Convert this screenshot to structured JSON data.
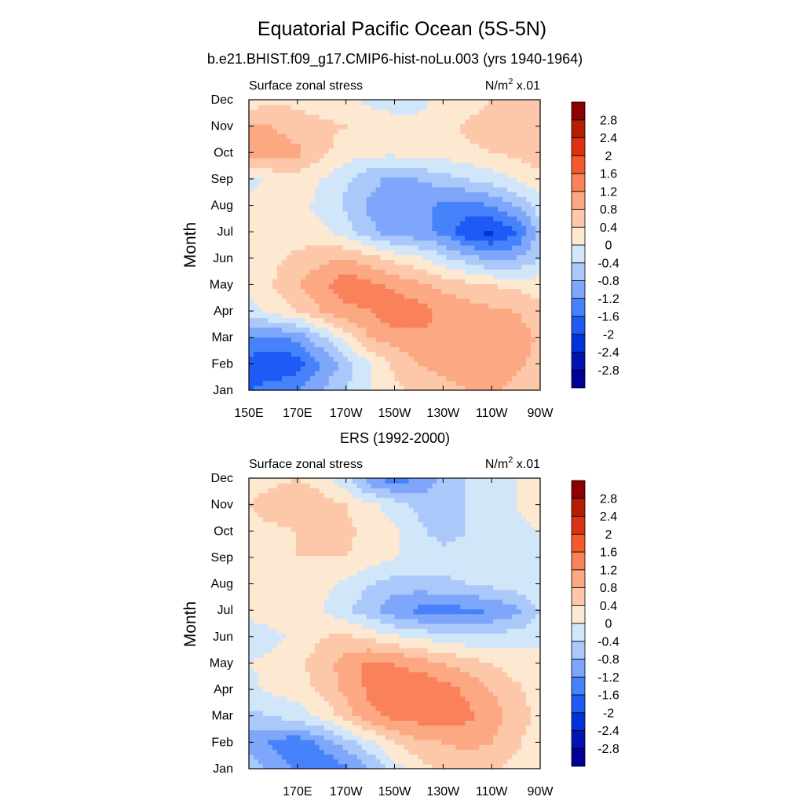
{
  "figure": {
    "title": "Equatorial Pacific Ocean (5S-5N)"
  },
  "chart_data": [
    {
      "type": "heatmap",
      "subtitle": "b.e21.BHIST.f09_g17.CMIP6-hist-noLu.003 (yrs 1940-1964)",
      "left_label": "Surface zonal stress",
      "units_prefix": "N/m",
      "units_sup": "2",
      "units_suffix": " x.01",
      "xlabel": "",
      "ylabel": "Month",
      "x_ticks": [
        "150E",
        "170E",
        "170W",
        "150W",
        "130W",
        "110W",
        "90W"
      ],
      "y_ticks": [
        "Jan",
        "Feb",
        "Mar",
        "Apr",
        "May",
        "Jun",
        "Jul",
        "Aug",
        "Sep",
        "Oct",
        "Nov",
        "Dec"
      ],
      "colorbar_labels": [
        "2.8",
        "2.4",
        "2",
        "1.6",
        "1.2",
        "0.8",
        "0.4",
        "0",
        "-0.4",
        "-0.8",
        "-1.2",
        "-1.6",
        "-2",
        "-2.4",
        "-2.8"
      ],
      "lon_range_deg_east": [
        150,
        270
      ],
      "x_lon": [
        150,
        160,
        170,
        180,
        190,
        200,
        210,
        220,
        230,
        240,
        250,
        260,
        270
      ],
      "y_months": [
        1,
        2,
        3,
        4,
        5,
        6,
        7,
        8,
        9,
        10,
        11,
        12
      ],
      "values": [
        [
          -1.6,
          -1.4,
          -1.2,
          -0.8,
          -0.4,
          0.0,
          0.3,
          0.5,
          0.7,
          0.8,
          0.9,
          0.6,
          0.5
        ],
        [
          -1.8,
          -2.0,
          -1.8,
          -1.2,
          -0.6,
          0.0,
          0.5,
          0.8,
          0.9,
          1.0,
          1.1,
          0.9,
          0.6
        ],
        [
          -1.2,
          -1.3,
          -1.1,
          -0.5,
          0.2,
          0.8,
          1.0,
          1.1,
          1.1,
          1.1,
          1.1,
          1.1,
          0.7
        ],
        [
          -0.2,
          0.1,
          0.4,
          0.8,
          1.1,
          1.2,
          1.5,
          1.4,
          1.1,
          1.0,
          0.9,
          0.8,
          0.5
        ],
        [
          0.2,
          0.4,
          0.8,
          1.1,
          1.5,
          1.3,
          1.1,
          0.9,
          0.7,
          0.5,
          0.4,
          0.3,
          0.2
        ],
        [
          0.2,
          0.3,
          0.5,
          0.7,
          0.8,
          0.6,
          0.3,
          0.1,
          -0.3,
          -0.6,
          -0.9,
          -0.8,
          -0.4
        ],
        [
          0.4,
          0.3,
          0.2,
          0.1,
          -0.2,
          -0.7,
          -1.0,
          -1.1,
          -1.3,
          -1.9,
          -2.1,
          -1.7,
          -0.6
        ],
        [
          0.1,
          0.1,
          0.1,
          -0.1,
          -0.5,
          -0.9,
          -1.0,
          -1.1,
          -1.3,
          -1.4,
          -1.2,
          -0.8,
          -0.2
        ],
        [
          -0.1,
          0.1,
          0.2,
          0.0,
          -0.3,
          -0.7,
          -0.9,
          -0.8,
          -0.6,
          -0.4,
          -0.2,
          0.0,
          0.3
        ],
        [
          1.0,
          1.0,
          0.9,
          0.5,
          0.2,
          0.1,
          0.1,
          0.2,
          0.2,
          0.3,
          0.4,
          0.5,
          0.6
        ],
        [
          0.8,
          0.8,
          0.6,
          0.5,
          0.4,
          0.3,
          0.2,
          0.1,
          0.2,
          0.5,
          0.6,
          0.7,
          0.8
        ],
        [
          0.2,
          0.3,
          0.3,
          0.2,
          0.1,
          -0.1,
          -0.2,
          -0.1,
          0.1,
          0.2,
          0.4,
          0.6,
          0.6
        ]
      ]
    },
    {
      "type": "heatmap",
      "subtitle": "ERS (1992-2000)",
      "left_label": "Surface zonal stress",
      "units_prefix": "N/m",
      "units_sup": "2",
      "units_suffix": " x.01",
      "xlabel": "",
      "ylabel": "Month",
      "x_ticks": [
        "",
        "170E",
        "170W",
        "150W",
        "130W",
        "110W",
        "90W"
      ],
      "y_ticks": [
        "Jan",
        "Feb",
        "Mar",
        "Apr",
        "May",
        "Jun",
        "Jul",
        "Aug",
        "Sep",
        "Oct",
        "Nov",
        "Dec"
      ],
      "colorbar_labels": [
        "2.8",
        "2.4",
        "2",
        "1.6",
        "1.2",
        "0.8",
        "0.4",
        "0",
        "-0.4",
        "-0.8",
        "-1.2",
        "-1.6",
        "-2",
        "-2.4",
        "-2.8"
      ],
      "lon_range_deg_east": [
        150,
        270
      ],
      "x_lon": [
        150,
        160,
        170,
        180,
        190,
        200,
        210,
        220,
        230,
        240,
        250,
        260,
        270
      ],
      "y_months": [
        1,
        2,
        3,
        4,
        5,
        6,
        7,
        8,
        9,
        10,
        11,
        12
      ],
      "values": [
        [
          -0.5,
          -0.9,
          -1.3,
          -1.6,
          -1.3,
          -0.8,
          -0.2,
          0.2,
          0.5,
          0.6,
          0.5,
          0.2,
          0.0
        ],
        [
          -1.0,
          -1.3,
          -1.5,
          -1.1,
          -0.6,
          -0.1,
          0.4,
          0.7,
          0.8,
          0.9,
          0.8,
          0.5,
          0.1
        ],
        [
          -0.5,
          -0.4,
          -0.2,
          0.1,
          0.6,
          1.1,
          1.3,
          1.4,
          1.5,
          1.3,
          1.0,
          0.6,
          0.3
        ],
        [
          -0.1,
          0.1,
          0.2,
          0.5,
          0.9,
          1.3,
          1.5,
          1.6,
          1.4,
          1.1,
          0.8,
          0.5,
          0.2
        ],
        [
          0.0,
          0.1,
          0.3,
          0.6,
          1.0,
          1.3,
          1.2,
          1.0,
          0.8,
          0.6,
          0.4,
          0.2,
          0.1
        ],
        [
          -0.2,
          -0.1,
          0.1,
          0.4,
          0.5,
          0.3,
          0.1,
          -0.1,
          -0.2,
          -0.3,
          -0.3,
          -0.2,
          -0.1
        ],
        [
          0.1,
          0.2,
          0.1,
          0.0,
          -0.3,
          -0.7,
          -1.1,
          -1.3,
          -1.4,
          -1.3,
          -1.2,
          -0.9,
          -0.4
        ],
        [
          0.1,
          0.2,
          0.2,
          0.1,
          -0.1,
          -0.4,
          -0.6,
          -0.6,
          -0.5,
          -0.4,
          -0.3,
          -0.2,
          0.0
        ],
        [
          0.2,
          0.3,
          0.4,
          0.4,
          0.4,
          0.2,
          0.0,
          -0.1,
          -0.2,
          -0.2,
          -0.2,
          -0.1,
          0.0
        ],
        [
          0.3,
          0.3,
          0.4,
          0.5,
          0.5,
          0.3,
          0.1,
          -0.3,
          -0.6,
          -0.4,
          -0.2,
          -0.1,
          0.0
        ],
        [
          0.4,
          0.6,
          0.7,
          0.6,
          0.4,
          0.1,
          -0.2,
          -0.5,
          -0.6,
          -0.4,
          -0.2,
          0.0,
          0.2
        ],
        [
          0.2,
          0.3,
          0.4,
          0.2,
          -0.3,
          -1.1,
          -1.4,
          -1.2,
          -0.7,
          -0.4,
          -0.2,
          0.0,
          0.1
        ]
      ]
    }
  ],
  "colormap": {
    "levels": [
      -2.8,
      -2.4,
      -2.0,
      -1.6,
      -1.2,
      -0.8,
      -0.4,
      0.0,
      0.4,
      0.8,
      1.2,
      1.6,
      2.0,
      2.4,
      2.8
    ],
    "colors": [
      "#000096",
      "#0014b4",
      "#0032dc",
      "#1e5af5",
      "#4682fa",
      "#7ea6fa",
      "#aac8fa",
      "#d2e6fa",
      "#fde8d2",
      "#fdc8aa",
      "#fca882",
      "#f9825a",
      "#f55a2d",
      "#dc3214",
      "#b41e00",
      "#8c0000"
    ]
  }
}
